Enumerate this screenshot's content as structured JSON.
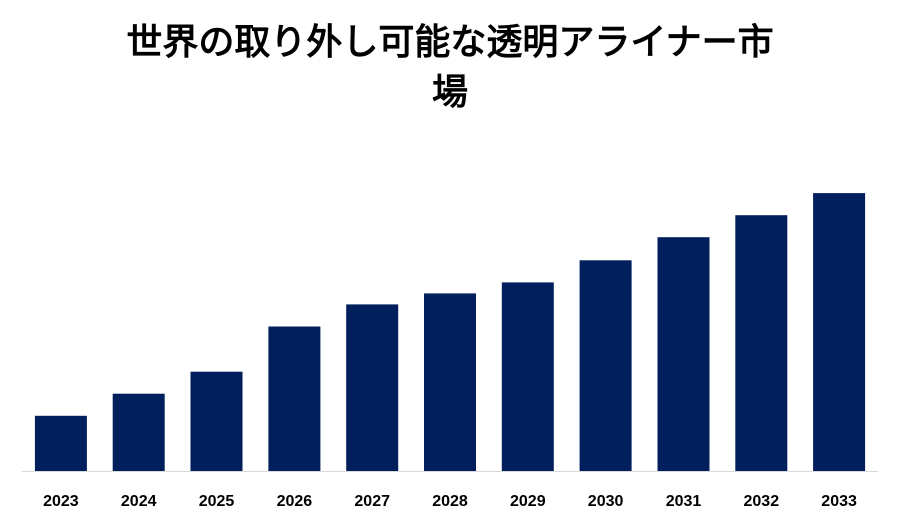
{
  "title_lines": [
    "世界の取り外し可能な透明アライナー市",
    "場"
  ],
  "colors": {
    "bar": "#001f5c",
    "baseline": "#d9d9d9",
    "text": "#000000"
  },
  "chart_data": {
    "type": "bar",
    "title": "世界の取り外し可能な透明アライナー市場",
    "categories": [
      "2023",
      "2024",
      "2025",
      "2026",
      "2027",
      "2028",
      "2029",
      "2030",
      "2031",
      "2032",
      "2033"
    ],
    "values": [
      55,
      77,
      99,
      144,
      166,
      177,
      188,
      210,
      233,
      255,
      277
    ],
    "xlabel": "",
    "ylabel": "",
    "ylim": [
      0,
      300
    ],
    "grid": false,
    "legend": "none",
    "value_axis_shown": false
  }
}
